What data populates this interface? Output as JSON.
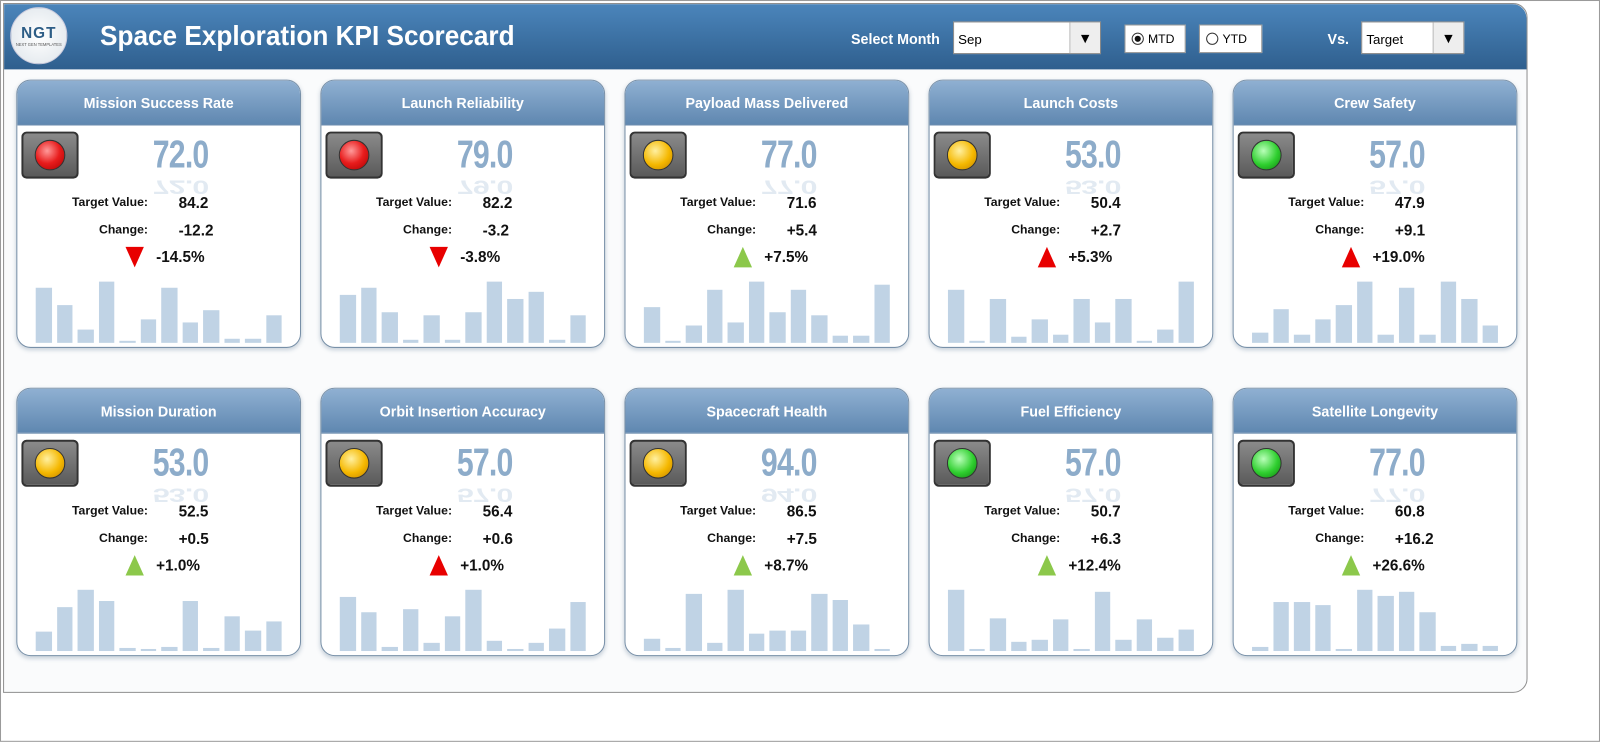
{
  "header": {
    "title": "Space Exploration KPI Scorecard",
    "logo_text": "NGT",
    "logo_sub": "NEXT GEN TEMPLATES",
    "select_month_label": "Select Month",
    "month": "Sep",
    "mtd": "MTD",
    "ytd": "YTD",
    "selected_period": "MTD",
    "vs_label": "Vs.",
    "vs": "Target"
  },
  "labels": {
    "target": "Target Value:",
    "change": "Change:"
  },
  "colors": {
    "red": "#e81c1c",
    "yellow": "#f5b800",
    "green": "#2fcf2f",
    "up_good": "#8cc84b",
    "bad": "#e80000",
    "bar": "#c0d3e5"
  },
  "cards": [
    {
      "title": "Mission Success Rate",
      "value": "72.0",
      "target": "84.2",
      "change": "-12.2",
      "pct": "-14.5%",
      "light": "red",
      "arrow": "down",
      "arrow_color": "bad",
      "trend": [
        90,
        62,
        21,
        100,
        3,
        38,
        90,
        33,
        53,
        7,
        7,
        45
      ]
    },
    {
      "title": "Launch Reliability",
      "value": "79.0",
      "target": "82.2",
      "change": "-3.2",
      "pct": "-3.8%",
      "light": "red",
      "arrow": "down",
      "arrow_color": "bad",
      "trend": [
        79,
        90,
        50,
        5,
        45,
        5,
        50,
        100,
        72,
        83,
        5,
        45
      ]
    },
    {
      "title": "Payload Mass Delivered",
      "value": "77.0",
      "target": "71.6",
      "change": "+5.4",
      "pct": "+7.5%",
      "light": "yellow",
      "arrow": "up",
      "arrow_color": "up_good",
      "trend": [
        59,
        3,
        28,
        86,
        34,
        100,
        50,
        86,
        45,
        12,
        12,
        95
      ]
    },
    {
      "title": "Launch Costs",
      "value": "53.0",
      "target": "50.4",
      "change": "+2.7",
      "pct": "+5.3%",
      "light": "yellow",
      "arrow": "up",
      "arrow_color": "bad",
      "trend": [
        86,
        3,
        72,
        10,
        38,
        14,
        72,
        34,
        72,
        3,
        21,
        100
      ]
    },
    {
      "title": "Crew Safety",
      "value": "57.0",
      "target": "47.9",
      "change": "+9.1",
      "pct": "+19.0%",
      "light": "green",
      "arrow": "up",
      "arrow_color": "bad",
      "trend": [
        17,
        55,
        14,
        38,
        62,
        100,
        14,
        90,
        14,
        100,
        72,
        28
      ]
    },
    {
      "title": "Mission Duration",
      "value": "53.0",
      "target": "52.5",
      "change": "+0.5",
      "pct": "+1.0%",
      "light": "yellow",
      "arrow": "up",
      "arrow_color": "up_good",
      "trend": [
        32,
        71,
        100,
        81,
        5,
        2,
        7,
        82,
        5,
        56,
        34,
        49
      ]
    },
    {
      "title": "Orbit Insertion Accuracy",
      "value": "57.0",
      "target": "56.4",
      "change": "+0.6",
      "pct": "+1.0%",
      "light": "yellow",
      "arrow": "up",
      "arrow_color": "bad",
      "trend": [
        89,
        63,
        7,
        69,
        14,
        57,
        100,
        17,
        2,
        14,
        37,
        80
      ]
    },
    {
      "title": "Spacecraft Health",
      "value": "94.0",
      "target": "86.5",
      "change": "+7.5",
      "pct": "+8.7%",
      "light": "yellow",
      "arrow": "up",
      "arrow_color": "up_good",
      "trend": [
        20,
        5,
        94,
        13,
        100,
        29,
        34,
        33,
        94,
        83,
        44,
        2
      ]
    },
    {
      "title": "Fuel Efficiency",
      "value": "57.0",
      "target": "50.7",
      "change": "+6.3",
      "pct": "+12.4%",
      "light": "green",
      "arrow": "up",
      "arrow_color": "up_good",
      "trend": [
        100,
        1,
        53,
        15,
        19,
        52,
        1,
        97,
        18,
        52,
        22,
        35
      ]
    },
    {
      "title": "Satellite Longevity",
      "value": "77.0",
      "target": "60.8",
      "change": "+16.2",
      "pct": "+26.6%",
      "light": "green",
      "arrow": "up",
      "arrow_color": "up_good",
      "trend": [
        7,
        80,
        80,
        75,
        2,
        100,
        90,
        96,
        63,
        8,
        11,
        8
      ]
    }
  ]
}
